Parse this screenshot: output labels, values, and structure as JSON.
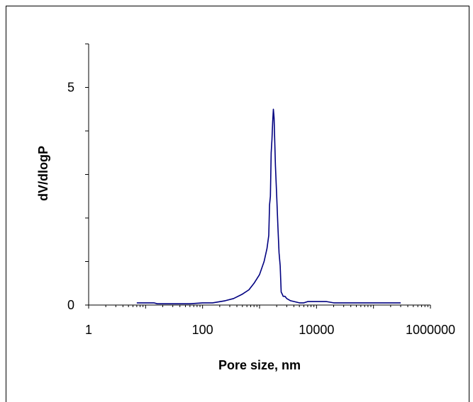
{
  "chart_data": {
    "type": "line",
    "title": "",
    "xlabel": "Pore size, nm",
    "ylabel": "dV/dlogP",
    "x_scale": "log",
    "xlim": [
      1,
      1000000
    ],
    "ylim": [
      0,
      6
    ],
    "x_ticks": [
      {
        "value": 1,
        "label": "1"
      },
      {
        "value": 100,
        "label": "100"
      },
      {
        "value": 10000,
        "label": "10000"
      },
      {
        "value": 1000000,
        "label": "1000000"
      }
    ],
    "y_ticks": [
      {
        "value": 0,
        "label": "0"
      },
      {
        "value": 5,
        "label": "5"
      }
    ],
    "grid": false,
    "legend": "none",
    "line_color": "#000080",
    "series": [
      {
        "x": [
          7,
          10,
          14,
          16,
          30,
          60,
          100,
          150,
          250,
          350,
          500,
          650,
          800,
          1000,
          1200,
          1350,
          1450,
          1500,
          1550,
          1600,
          1650,
          1700,
          1750,
          1800,
          1900,
          2000,
          2100,
          2200,
          2300,
          2400,
          2500,
          2600,
          2800,
          3000,
          3500,
          5000,
          6000,
          7000,
          10000,
          15000,
          20000,
          30000,
          50000,
          100000,
          300000
        ],
        "y": [
          0.05,
          0.05,
          0.05,
          0.03,
          0.03,
          0.03,
          0.05,
          0.05,
          0.1,
          0.15,
          0.25,
          0.35,
          0.5,
          0.7,
          1.0,
          1.3,
          1.6,
          2.3,
          2.5,
          3.5,
          3.8,
          4.2,
          4.5,
          4.3,
          3.2,
          2.5,
          1.8,
          1.2,
          0.9,
          0.3,
          0.25,
          0.2,
          0.2,
          0.15,
          0.1,
          0.05,
          0.05,
          0.08,
          0.08,
          0.08,
          0.05,
          0.05,
          0.05,
          0.05,
          0.05
        ]
      }
    ]
  }
}
